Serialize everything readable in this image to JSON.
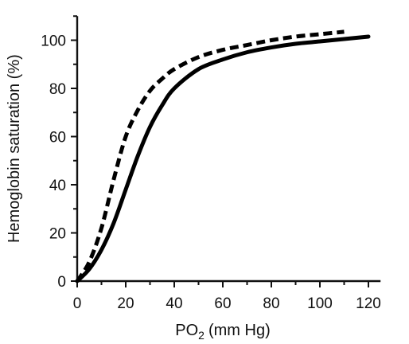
{
  "chart_data": {
    "type": "line",
    "xlabel_main": "PO",
    "xlabel_sub": "2",
    "xlabel_unit": "(mm Hg)",
    "ylabel": "Hemoglobin saturation (%)",
    "xlim": [
      0,
      125
    ],
    "ylim": [
      0,
      110
    ],
    "x_ticks": [
      0,
      20,
      40,
      60,
      80,
      100,
      120
    ],
    "y_ticks": [
      0,
      20,
      40,
      60,
      80,
      100
    ],
    "grid": false,
    "series": [
      {
        "style": "solid",
        "x": [
          0,
          5,
          10,
          15,
          20,
          25,
          30,
          35,
          40,
          50,
          60,
          70,
          80,
          90,
          100,
          110,
          120
        ],
        "y": [
          0,
          5,
          13,
          24,
          38,
          52,
          64,
          73,
          80,
          88,
          92,
          95,
          97,
          98.5,
          99.5,
          100.5,
          101.5
        ]
      },
      {
        "style": "dashed",
        "x": [
          0,
          5,
          10,
          15,
          20,
          25,
          30,
          35,
          40,
          50,
          60,
          70,
          80,
          90,
          100,
          110
        ],
        "y": [
          0,
          8,
          22,
          42,
          60,
          71,
          79,
          84,
          88,
          93,
          96,
          98,
          100,
          101.5,
          102.5,
          103.5
        ]
      }
    ]
  }
}
